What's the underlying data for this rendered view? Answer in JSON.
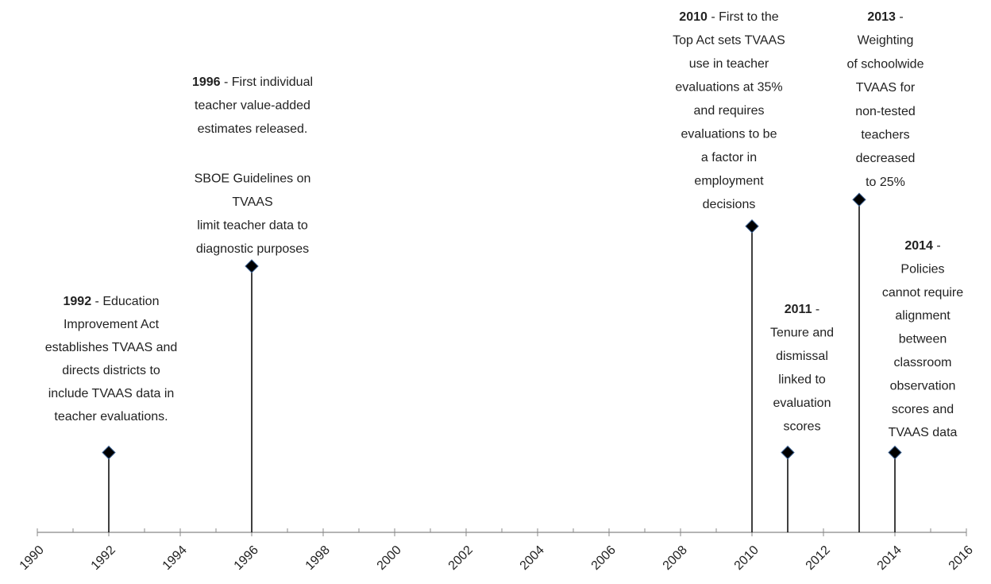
{
  "chart_data": {
    "type": "timeline",
    "x": [
      1992,
      1996,
      2010,
      2011,
      2013,
      2014
    ],
    "values": [
      1.5,
      5,
      5.75,
      1.5,
      6.25,
      1.5
    ],
    "ylim": [
      0,
      10
    ],
    "xlim": [
      1990,
      2016
    ],
    "xticks": [
      1990,
      1992,
      1994,
      1996,
      1998,
      2000,
      2002,
      2004,
      2006,
      2008,
      2010,
      2012,
      2014,
      2016
    ],
    "color": "#000000",
    "annotations": [
      {
        "bold": "1992",
        "paragraphs": [
          [
            " - Education",
            "Improvement Act",
            "establishes TVAAS and",
            "directs districts to",
            "include TVAAS data in",
            "teacher evaluations."
          ]
        ]
      },
      {
        "bold": "1996",
        "paragraphs": [
          [
            " - First individual",
            "teacher value-added",
            "estimates released."
          ],
          [
            "SBOE Guidelines on",
            "TVAAS",
            "limit teacher data to",
            "diagnostic purposes"
          ]
        ]
      },
      {
        "bold": "2010",
        "paragraphs": [
          [
            " - First to the",
            "Top Act sets TVAAS",
            "use in teacher",
            "evaluations at 35%",
            "and requires",
            "evaluations to be",
            "a factor in",
            "employment",
            "decisions"
          ]
        ]
      },
      {
        "bold": "2011",
        "paragraphs": [
          [
            " -",
            "Tenure and",
            "dismissal",
            "linked to",
            "evaluation",
            "scores"
          ]
        ]
      },
      {
        "bold": "2013",
        "paragraphs": [
          [
            " -",
            "Weighting",
            "of schoolwide",
            "TVAAS for",
            "non-tested",
            "teachers",
            "decreased",
            "to 25%"
          ]
        ]
      },
      {
        "bold": "2014",
        "paragraphs": [
          [
            " -",
            "Policies",
            "cannot require",
            "alignment",
            "between",
            "classroom",
            "observation",
            "scores and",
            "TVAAS data"
          ]
        ]
      }
    ]
  }
}
